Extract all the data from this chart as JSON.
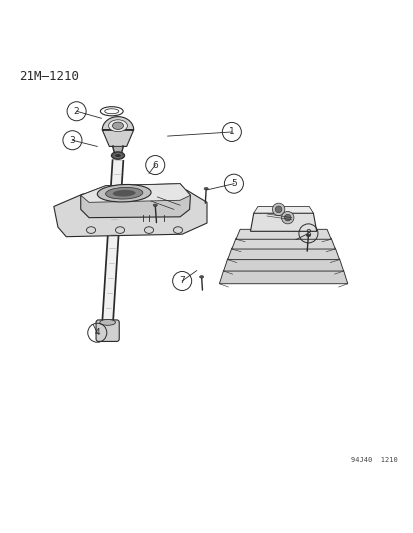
{
  "title": "21M‒1210",
  "footer": "94J40  1210",
  "bg_color": "#ffffff",
  "line_color": "#2a2a2a",
  "figsize": [
    4.14,
    5.33
  ],
  "dpi": 100,
  "leaders": [
    [
      1,
      0.56,
      0.825,
      0.405,
      0.815
    ],
    [
      2,
      0.185,
      0.875,
      0.245,
      0.858
    ],
    [
      3,
      0.175,
      0.805,
      0.235,
      0.79
    ],
    [
      4,
      0.235,
      0.34,
      0.225,
      0.36
    ],
    [
      5,
      0.565,
      0.7,
      0.5,
      0.685
    ],
    [
      6,
      0.375,
      0.745,
      0.36,
      0.725
    ],
    [
      7,
      0.44,
      0.465,
      0.475,
      0.49
    ],
    [
      8,
      0.745,
      0.58,
      0.715,
      0.565
    ]
  ]
}
